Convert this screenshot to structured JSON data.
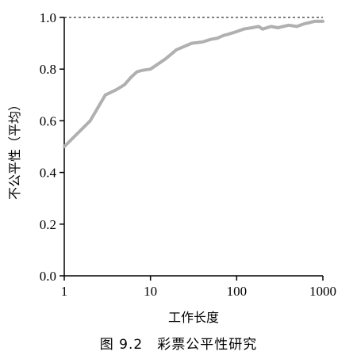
{
  "caption": "图 9.2　彩票公平性研究",
  "chart_data": {
    "type": "line",
    "xlabel": "工作长度",
    "ylabel": "不公平性（平均）",
    "x_scale": "log",
    "xlim": [
      1,
      1000
    ],
    "ylim": [
      0.0,
      1.0
    ],
    "x_ticks": [
      1,
      10,
      100,
      1000
    ],
    "x_tick_labels": [
      "1",
      "10",
      "100",
      "1000"
    ],
    "y_ticks": [
      0.0,
      0.2,
      0.4,
      0.6,
      0.8,
      1.0
    ],
    "y_tick_labels": [
      "0.0",
      "0.2",
      "0.4",
      "0.6",
      "0.8",
      "1.0"
    ],
    "reference_line": {
      "y": 1.0,
      "style": "dashed"
    },
    "series": [
      {
        "color": "#b0b0b0",
        "x": [
          1,
          2,
          3,
          4,
          5,
          6,
          7,
          8,
          10,
          15,
          20,
          30,
          40,
          50,
          60,
          70,
          80,
          100,
          120,
          150,
          180,
          200,
          250,
          300,
          400,
          500,
          600,
          700,
          800,
          1000
        ],
        "y": [
          0.5,
          0.6,
          0.7,
          0.72,
          0.74,
          0.77,
          0.79,
          0.795,
          0.8,
          0.84,
          0.875,
          0.9,
          0.905,
          0.915,
          0.92,
          0.93,
          0.935,
          0.945,
          0.955,
          0.96,
          0.965,
          0.955,
          0.965,
          0.96,
          0.97,
          0.965,
          0.975,
          0.98,
          0.985,
          0.985
        ]
      }
    ],
    "grid": false
  }
}
